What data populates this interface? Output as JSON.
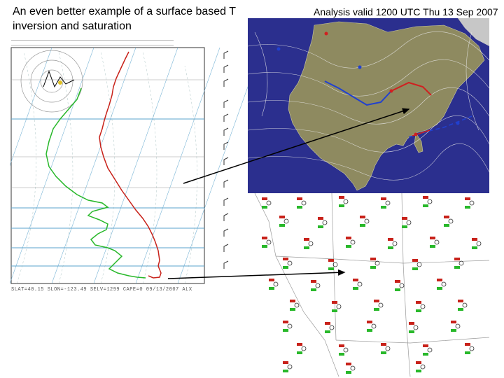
{
  "slide": {
    "title": "An even better example of a surface based T inversion and saturation"
  },
  "map": {
    "caption": "Analysis valid 1200 UTC Thu 13 Sep 2007"
  },
  "skewt": {
    "footer": "SLAT=40.15 SLON=-123.49 SELV=1299 CAPE=0 09/13/2007 ALX"
  },
  "colors": {
    "ocean": "#2b2f8e",
    "land": "#8e8a60",
    "temperature_trace": "#c8221a",
    "dewpoint_trace": "#28b82a",
    "isotherm_lines": "#5aa3cc",
    "arrow": "#000000"
  }
}
